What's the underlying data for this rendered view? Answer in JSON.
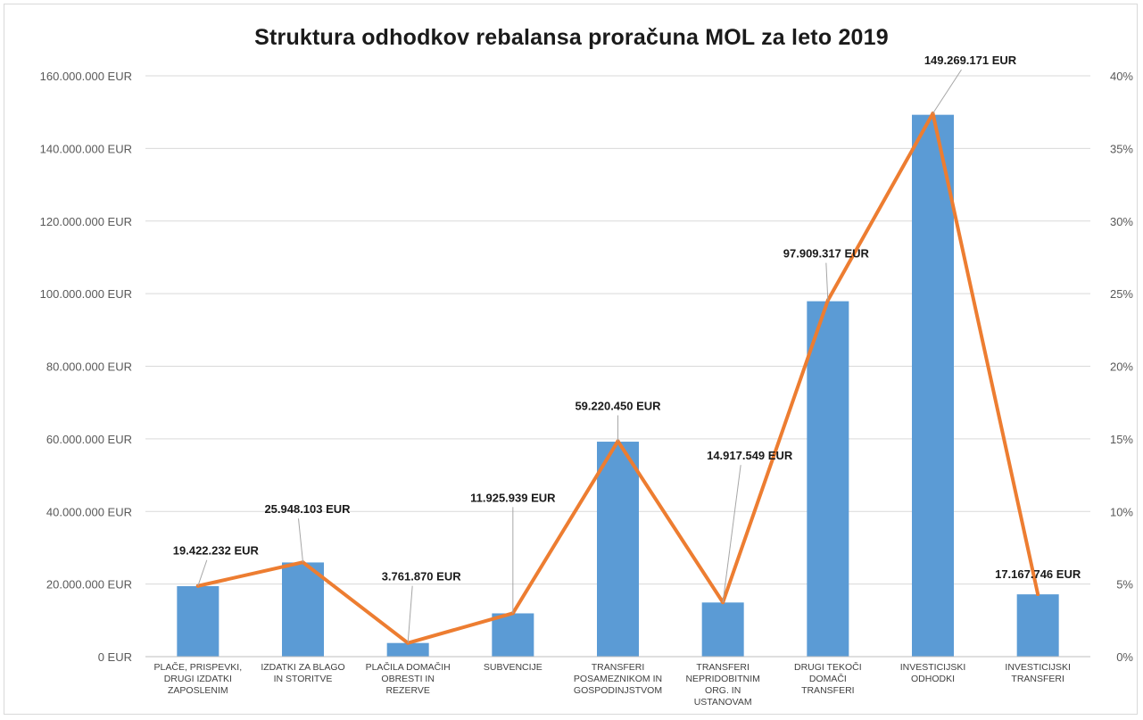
{
  "chart_data": {
    "type": "bar",
    "title": "Struktura odhodkov rebalansa proračuna MOL za leto 2019",
    "categories": [
      [
        "PLAČE, PRISPEVKI,",
        "DRUGI IZDATKI",
        "ZAPOSLENIM"
      ],
      [
        "IZDATKI ZA BLAGO",
        "IN STORITVE"
      ],
      [
        "PLAČILA DOMAČIH",
        "OBRESTI IN",
        "REZERVE"
      ],
      [
        "SUBVENCIJE"
      ],
      [
        "TRANSFERI",
        "POSAMEZNIKOM IN",
        "GOSPODINJSTVOM"
      ],
      [
        "TRANSFERI",
        "NEPRIDOBITNIM",
        "ORG. IN",
        "USTANOVAM"
      ],
      [
        "DRUGI TEKOČI",
        "DOMAČI",
        "TRANSFERI"
      ],
      [
        "INVESTICIJSKI",
        "ODHODKI"
      ],
      [
        "INVESTICIJSKI",
        "TRANSFERI"
      ]
    ],
    "series": [
      {
        "type": "bar",
        "color": "#5b9bd5",
        "values": [
          19422232,
          25948103,
          3761870,
          11925939,
          59220450,
          14917549,
          97909317,
          149269171,
          17167746
        ],
        "data_labels": [
          "19.422.232 EUR",
          "25.948.103 EUR",
          "3.761.870 EUR",
          "11.925.939 EUR",
          "59.220.450 EUR",
          "14.917.549 EUR",
          "97.909.317 EUR",
          "149.269.171 EUR",
          "17.167.746 EUR"
        ]
      },
      {
        "type": "line",
        "axis": "secondary",
        "color": "#ed7d31",
        "values": [
          4.87,
          6.5,
          0.94,
          2.99,
          14.84,
          3.74,
          24.54,
          37.41,
          4.3
        ]
      }
    ],
    "ylim": [
      0,
      160000000
    ],
    "yticks": [
      0,
      20000000,
      40000000,
      60000000,
      80000000,
      100000000,
      120000000,
      140000000,
      160000000
    ],
    "ytick_labels": [
      "0 EUR",
      "20.000.000 EUR",
      "40.000.000 EUR",
      "60.000.000 EUR",
      "80.000.000 EUR",
      "100.000.000 EUR",
      "120.000.000 EUR",
      "140.000.000 EUR",
      "160.000.000 EUR"
    ],
    "y2lim": [
      0,
      40
    ],
    "y2ticks": [
      0,
      5,
      10,
      15,
      20,
      25,
      30,
      35,
      40
    ],
    "y2tick_labels": [
      "0%",
      "5%",
      "10%",
      "15%",
      "20%",
      "25%",
      "30%",
      "35%",
      "40%"
    ],
    "grid": true,
    "legend": "none"
  }
}
